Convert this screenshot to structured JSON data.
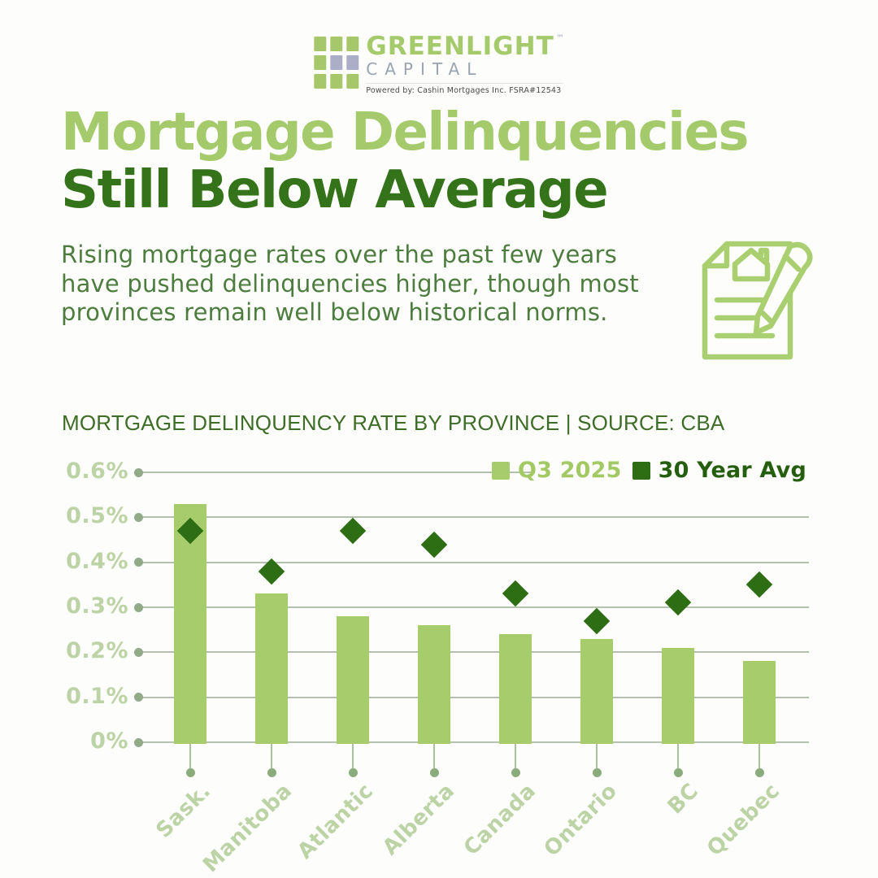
{
  "brand": {
    "logo_squares": [
      "#a6c86b",
      "#a6c86b",
      "#a6c86b",
      "#a6c86b",
      "#abaec6",
      "#abaec6",
      "#a6c86b",
      "#a6c86b",
      "#a6c86b"
    ],
    "name": "GREENLIGHT",
    "subname": "CAPITAL",
    "trademark": "™",
    "tagline": "Powered by: Cashin Mortgages Inc.  FSRA#12543"
  },
  "headline": {
    "line1": "Mortgage Delinquencies",
    "line2": "Still Below Average",
    "line1_color": "#a5ca6b",
    "line2_color": "#35731a"
  },
  "intro": "Rising mortgage rates over the past few years have pushed delinquencies higher, though most provinces remain well below historical norms.",
  "icon": {
    "name": "document-with-house-and-pen",
    "stroke_color": "#a9cf70"
  },
  "chart_data": {
    "type": "bar",
    "title": "MORTGAGE DELINQUENCY RATE BY PROVINCE | SOURCE: CBA",
    "categories": [
      "Sask.",
      "Manitoba",
      "Atlantic",
      "Alberta",
      "Canada",
      "Ontario",
      "BC",
      "Quebec"
    ],
    "series": [
      {
        "name": "Q3 2025",
        "type": "bar",
        "color": "#a7cc6c",
        "label_color": "#a2c963",
        "values": [
          0.53,
          0.33,
          0.28,
          0.26,
          0.24,
          0.23,
          0.21,
          0.18
        ]
      },
      {
        "name": "30 Year Avg",
        "type": "scatter",
        "marker": "diamond",
        "color": "#2d6e14",
        "label_color": "#255e0f",
        "values": [
          0.47,
          0.38,
          0.47,
          0.44,
          0.33,
          0.27,
          0.31,
          0.35
        ]
      }
    ],
    "unit": "%",
    "xlabel": "",
    "ylabel": "",
    "ylim": [
      0,
      0.6
    ],
    "yticks": [
      0,
      0.1,
      0.2,
      0.3,
      0.4,
      0.5,
      0.6
    ],
    "ytick_labels": [
      "0%",
      "0.1%",
      "0.2%",
      "0.3%",
      "0.4%",
      "0.5%",
      "0.6%"
    ],
    "grid": true,
    "legend_position": "top-right"
  }
}
